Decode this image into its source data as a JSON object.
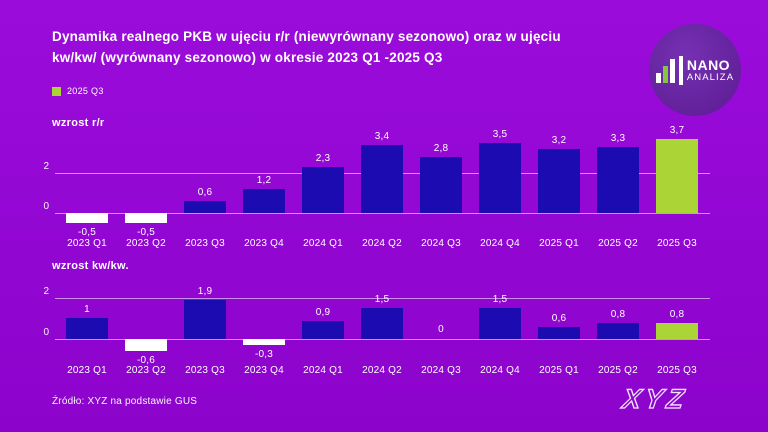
{
  "header": {
    "title_line1": "Dynamika realnego PKB w ujęciu r/r (niewyrównany sezonowo) oraz w ujęciu",
    "title_line2": "kw/kw/ (wyrównany sezonowo) w okresie 2023 Q1 -2025 Q3"
  },
  "legend": {
    "label": "2025 Q3",
    "color": "#abd436"
  },
  "logo": {
    "line1": "NANO",
    "line2": "ANALIZA"
  },
  "footer": {
    "source": "Źródło: XYZ na podstawie GUS",
    "brand": "XYZ"
  },
  "colors": {
    "background": "#9206d2",
    "bar": "#1b0bb0",
    "negative": "#ffffff",
    "highlight": "#abd436"
  },
  "chart_data": [
    {
      "type": "bar",
      "title": "wzrost r/r",
      "categories": [
        "2023 Q1",
        "2023 Q2",
        "2023 Q3",
        "2023 Q4",
        "2024 Q1",
        "2024 Q2",
        "2024 Q3",
        "2024 Q4",
        "2025 Q1",
        "2025 Q2",
        "2025 Q3"
      ],
      "values": [
        -0.5,
        -0.5,
        0.6,
        1.2,
        2.3,
        3.4,
        2.8,
        3.5,
        3.2,
        3.3,
        3.7
      ],
      "labels": [
        "-0,5",
        "-0,5",
        "0,6",
        "1,2",
        "2,3",
        "3,4",
        "2,8",
        "3,5",
        "3,2",
        "3,3",
        "3,7"
      ],
      "yticks": [
        0,
        2
      ],
      "ylim": [
        -1,
        4
      ],
      "grid": true,
      "legend_position": "top-left",
      "highlight_index": 10,
      "bar_color": "#1b0bb0",
      "negative_color": "#ffffff",
      "highlight_color": "#abd436",
      "xlabel": "",
      "ylabel": "wzrost r/r"
    },
    {
      "type": "bar",
      "title": "wzrost kw/kw.",
      "categories": [
        "2023 Q1",
        "2023 Q2",
        "2023 Q3",
        "2023 Q4",
        "2024 Q1",
        "2024 Q2",
        "2024 Q3",
        "2024 Q4",
        "2025 Q1",
        "2025 Q2",
        "2025 Q3"
      ],
      "values": [
        1,
        -0.6,
        1.9,
        -0.3,
        0.9,
        1.5,
        0,
        1.5,
        0.6,
        0.8,
        0.8
      ],
      "labels": [
        "1",
        "-0,6",
        "1,9",
        "-0,3",
        "0,9",
        "1,5",
        "0",
        "1,5",
        "0,6",
        "0,8",
        "0,8"
      ],
      "yticks": [
        0,
        2
      ],
      "ylim": [
        -1,
        2.5
      ],
      "grid": true,
      "legend_position": "none",
      "highlight_index": 10,
      "bar_color": "#1b0bb0",
      "negative_color": "#ffffff",
      "highlight_color": "#abd436",
      "xlabel": "",
      "ylabel": "wzrost kw/kw."
    }
  ]
}
